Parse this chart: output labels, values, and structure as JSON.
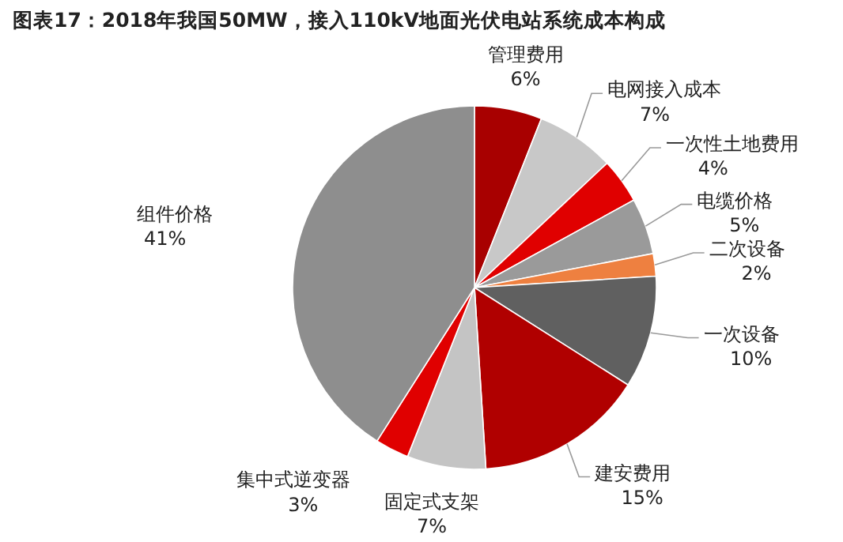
{
  "chart_data": {
    "type": "pie",
    "title": "图表17：2018年我国50MW，接入110kV地面光伏电站系统成本构成",
    "categories": [
      "管理费用",
      "电网接入成本",
      "一次性土地费用",
      "电缆价格",
      "二次设备",
      "一次设备",
      "建安费用",
      "固定式支架",
      "集中式逆变器",
      "组件价格"
    ],
    "values": [
      6,
      7,
      4,
      5,
      2,
      10,
      15,
      7,
      3,
      41
    ],
    "value_labels": [
      "6%",
      "7%",
      "4%",
      "5%",
      "2%",
      "10%",
      "15%",
      "7%",
      "3%",
      "41%"
    ],
    "colors": [
      "#a80000",
      "#c8c8c8",
      "#e00000",
      "#9a9a9a",
      "#ee8040",
      "#606060",
      "#b00000",
      "#c4c4c4",
      "#e00000",
      "#8e8e8e"
    ]
  }
}
